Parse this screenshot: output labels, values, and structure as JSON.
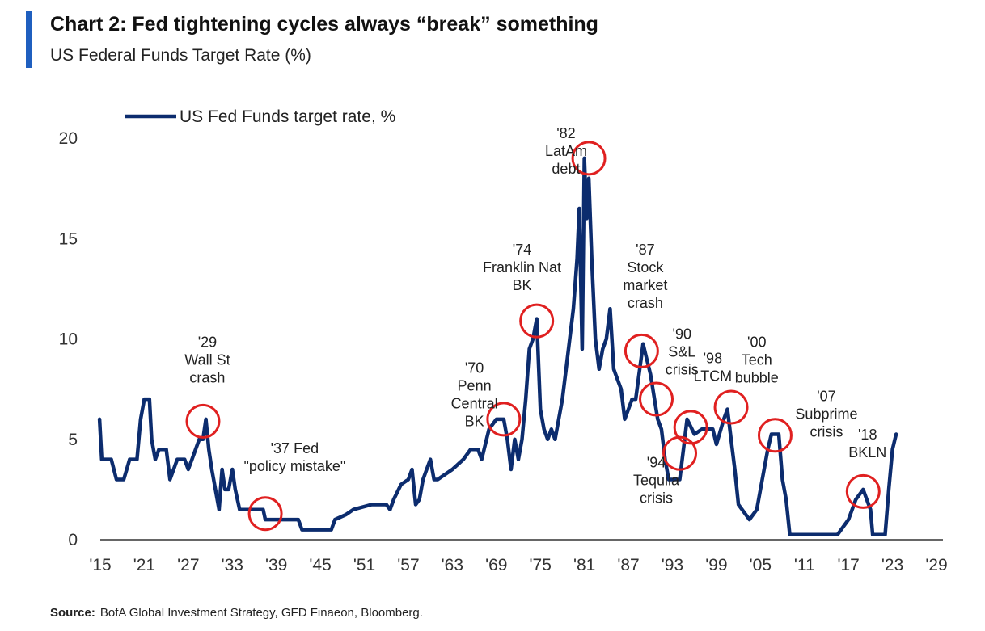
{
  "header": {
    "title": "Chart 2: Fed tightening cycles always “break” something",
    "subtitle": "US Federal Funds Target Rate (%)"
  },
  "footer": {
    "source_label": "Source:",
    "source_text": "BofA Global Investment Strategy, GFD Finaeon, Bloomberg."
  },
  "colors": {
    "series": "#0c2c6e",
    "circle": "#e02020",
    "accent": "#1f5fbf",
    "axis": "#333333"
  },
  "chart_data": {
    "type": "line",
    "title": "",
    "xlabel": "",
    "ylabel": "",
    "xlim": [
      1915,
      2029
    ],
    "ylim": [
      0,
      20
    ],
    "grid": false,
    "legend_position": "top-left",
    "x_ticks": [
      {
        "v": 1915,
        "label": "'15"
      },
      {
        "v": 1921,
        "label": "'21"
      },
      {
        "v": 1927,
        "label": "'27"
      },
      {
        "v": 1933,
        "label": "'33"
      },
      {
        "v": 1939,
        "label": "'39"
      },
      {
        "v": 1945,
        "label": "'45"
      },
      {
        "v": 1951,
        "label": "'51"
      },
      {
        "v": 1957,
        "label": "'57"
      },
      {
        "v": 1963,
        "label": "'63"
      },
      {
        "v": 1969,
        "label": "'69"
      },
      {
        "v": 1975,
        "label": "'75"
      },
      {
        "v": 1981,
        "label": "'81"
      },
      {
        "v": 1987,
        "label": "'87"
      },
      {
        "v": 1993,
        "label": "'93"
      },
      {
        "v": 1999,
        "label": "'99"
      },
      {
        "v": 2005,
        "label": "'05"
      },
      {
        "v": 2011,
        "label": "'11"
      },
      {
        "v": 2017,
        "label": "'17"
      },
      {
        "v": 2023,
        "label": "'23"
      },
      {
        "v": 2029,
        "label": "'29"
      }
    ],
    "y_ticks": [
      {
        "v": 0,
        "label": "0"
      },
      {
        "v": 5,
        "label": "5"
      },
      {
        "v": 10,
        "label": "10"
      },
      {
        "v": 15,
        "label": "15"
      },
      {
        "v": 20,
        "label": "20"
      }
    ],
    "series": [
      {
        "name": "US Fed Funds target rate, %",
        "points": [
          [
            1914.9,
            6.0
          ],
          [
            1915.2,
            4.0
          ],
          [
            1916.5,
            4.0
          ],
          [
            1917.2,
            3.0
          ],
          [
            1918.2,
            3.0
          ],
          [
            1918.6,
            3.5
          ],
          [
            1919.0,
            4.0
          ],
          [
            1920.0,
            4.0
          ],
          [
            1920.5,
            6.0
          ],
          [
            1921.0,
            7.0
          ],
          [
            1921.7,
            7.0
          ],
          [
            1922.0,
            5.0
          ],
          [
            1922.5,
            4.0
          ],
          [
            1923.0,
            4.5
          ],
          [
            1924.0,
            4.5
          ],
          [
            1924.5,
            3.0
          ],
          [
            1925.0,
            3.5
          ],
          [
            1925.5,
            4.0
          ],
          [
            1926.5,
            4.0
          ],
          [
            1927.0,
            3.5
          ],
          [
            1927.5,
            4.0
          ],
          [
            1928.0,
            4.5
          ],
          [
            1928.5,
            5.0
          ],
          [
            1929.0,
            5.0
          ],
          [
            1929.4,
            6.0
          ],
          [
            1929.8,
            4.5
          ],
          [
            1930.2,
            3.5
          ],
          [
            1930.7,
            2.5
          ],
          [
            1931.2,
            1.5
          ],
          [
            1931.6,
            3.5
          ],
          [
            1932.0,
            2.5
          ],
          [
            1932.5,
            2.5
          ],
          [
            1933.0,
            3.5
          ],
          [
            1933.4,
            2.5
          ],
          [
            1934.0,
            1.5
          ],
          [
            1937.2,
            1.5
          ],
          [
            1937.5,
            1.0
          ],
          [
            1942.0,
            1.0
          ],
          [
            1942.5,
            0.5
          ],
          [
            1946.5,
            0.5
          ],
          [
            1947.0,
            1.0
          ],
          [
            1948.5,
            1.25
          ],
          [
            1949.5,
            1.5
          ],
          [
            1952.0,
            1.75
          ],
          [
            1954.0,
            1.75
          ],
          [
            1954.5,
            1.5
          ],
          [
            1955.0,
            2.0
          ],
          [
            1956.0,
            2.75
          ],
          [
            1957.0,
            3.0
          ],
          [
            1957.5,
            3.5
          ],
          [
            1958.0,
            1.75
          ],
          [
            1958.5,
            2.0
          ],
          [
            1959.0,
            3.0
          ],
          [
            1959.5,
            3.5
          ],
          [
            1960.0,
            4.0
          ],
          [
            1960.5,
            3.0
          ],
          [
            1961.0,
            3.0
          ],
          [
            1963.0,
            3.5
          ],
          [
            1964.5,
            4.0
          ],
          [
            1965.5,
            4.5
          ],
          [
            1966.5,
            4.5
          ],
          [
            1967.0,
            4.0
          ],
          [
            1968.0,
            5.5
          ],
          [
            1969.0,
            6.0
          ],
          [
            1970.0,
            6.0
          ],
          [
            1970.5,
            5.0
          ],
          [
            1971.0,
            3.5
          ],
          [
            1971.5,
            5.0
          ],
          [
            1972.0,
            4.0
          ],
          [
            1972.5,
            5.0
          ],
          [
            1973.0,
            7.0
          ],
          [
            1973.5,
            9.5
          ],
          [
            1974.0,
            10.0
          ],
          [
            1974.5,
            11.0
          ],
          [
            1975.0,
            6.5
          ],
          [
            1975.5,
            5.5
          ],
          [
            1976.0,
            5.0
          ],
          [
            1976.5,
            5.5
          ],
          [
            1977.0,
            5.0
          ],
          [
            1977.5,
            6.0
          ],
          [
            1978.0,
            7.0
          ],
          [
            1978.5,
            8.5
          ],
          [
            1979.0,
            10.0
          ],
          [
            1979.5,
            11.5
          ],
          [
            1980.0,
            14.0
          ],
          [
            1980.3,
            16.5
          ],
          [
            1980.7,
            9.5
          ],
          [
            1981.0,
            19.0
          ],
          [
            1981.3,
            16.0
          ],
          [
            1981.6,
            18.0
          ],
          [
            1982.0,
            14.0
          ],
          [
            1982.5,
            10.0
          ],
          [
            1983.0,
            8.5
          ],
          [
            1983.5,
            9.5
          ],
          [
            1984.0,
            10.0
          ],
          [
            1984.5,
            11.5
          ],
          [
            1985.0,
            8.5
          ],
          [
            1985.5,
            8.0
          ],
          [
            1986.0,
            7.5
          ],
          [
            1986.5,
            6.0
          ],
          [
            1987.0,
            6.5
          ],
          [
            1987.5,
            7.0
          ],
          [
            1988.0,
            7.0
          ],
          [
            1989.0,
            9.75
          ],
          [
            1989.5,
            9.0
          ],
          [
            1990.0,
            8.25
          ],
          [
            1991.0,
            6.0
          ],
          [
            1991.5,
            5.5
          ],
          [
            1992.0,
            4.0
          ],
          [
            1992.5,
            3.0
          ],
          [
            1994.0,
            3.0
          ],
          [
            1994.5,
            4.5
          ],
          [
            1995.0,
            6.0
          ],
          [
            1996.0,
            5.25
          ],
          [
            1997.0,
            5.5
          ],
          [
            1998.5,
            5.5
          ],
          [
            1999.0,
            4.75
          ],
          [
            2000.0,
            6.0
          ],
          [
            2000.5,
            6.5
          ],
          [
            2001.0,
            5.0
          ],
          [
            2001.5,
            3.5
          ],
          [
            2002.0,
            1.75
          ],
          [
            2003.0,
            1.25
          ],
          [
            2003.5,
            1.0
          ],
          [
            2004.5,
            1.5
          ],
          [
            2005.0,
            2.5
          ],
          [
            2006.0,
            4.5
          ],
          [
            2006.5,
            5.25
          ],
          [
            2007.5,
            5.25
          ],
          [
            2008.0,
            3.0
          ],
          [
            2008.5,
            2.0
          ],
          [
            2009.0,
            0.25
          ],
          [
            2015.5,
            0.25
          ],
          [
            2016.0,
            0.5
          ],
          [
            2017.0,
            1.0
          ],
          [
            2018.0,
            2.0
          ],
          [
            2019.0,
            2.5
          ],
          [
            2019.5,
            2.0
          ],
          [
            2020.0,
            1.5
          ],
          [
            2020.3,
            0.25
          ],
          [
            2022.0,
            0.25
          ],
          [
            2022.5,
            2.5
          ],
          [
            2023.0,
            4.5
          ],
          [
            2023.5,
            5.25
          ]
        ]
      }
    ],
    "annotations": [
      {
        "label_lines": [
          "'29",
          "Wall St",
          "crash"
        ],
        "circle": [
          1929.0,
          5.9
        ],
        "text_at": [
          1929.6,
          9.6
        ]
      },
      {
        "label_lines": [
          "'37 Fed",
          "\"policy mistake\""
        ],
        "circle": [
          1937.5,
          1.3
        ],
        "text_at": [
          1941.5,
          4.3
        ]
      },
      {
        "label_lines": [
          "'70",
          "Penn",
          "Central",
          "BK"
        ],
        "circle": [
          1970.0,
          6.0
        ],
        "text_at": [
          1966.0,
          8.3
        ]
      },
      {
        "label_lines": [
          "'74",
          "Franklin Nat",
          "BK"
        ],
        "circle": [
          1974.5,
          10.9
        ],
        "text_at": [
          1972.5,
          14.2
        ]
      },
      {
        "label_lines": [
          "'82",
          "LatAm",
          "debt"
        ],
        "circle": [
          1981.6,
          19.0
        ],
        "text_at": [
          1978.5,
          20.0
        ]
      },
      {
        "label_lines": [
          "'87",
          "Stock",
          "market",
          "crash"
        ],
        "circle": [
          1988.8,
          9.4
        ],
        "text_at": [
          1989.3,
          14.2
        ]
      },
      {
        "label_lines": [
          "'90",
          "S&L",
          "crisis"
        ],
        "circle": [
          1990.8,
          7.0
        ],
        "text_at": [
          1994.3,
          10.0
        ]
      },
      {
        "label_lines": [
          "'94",
          "Tequila",
          "crisis"
        ],
        "circle": [
          1994.0,
          4.3
        ],
        "text_at": [
          1990.8,
          3.6
        ]
      },
      {
        "label_lines": [
          "'98",
          "LTCM"
        ],
        "circle": [
          1995.5,
          5.6
        ],
        "text_at": [
          1998.5,
          8.8
        ]
      },
      {
        "label_lines": [
          "'00",
          "Tech",
          "bubble"
        ],
        "circle": [
          2001.0,
          6.6
        ],
        "text_at": [
          2004.5,
          9.6
        ]
      },
      {
        "label_lines": [
          "'07",
          "Subprime",
          "crisis"
        ],
        "circle": [
          2007.0,
          5.2
        ],
        "text_at": [
          2014.0,
          6.9
        ]
      },
      {
        "label_lines": [
          "'18",
          "BKLN"
        ],
        "circle": [
          2019.0,
          2.4
        ],
        "text_at": [
          2019.6,
          5.0
        ]
      }
    ]
  }
}
